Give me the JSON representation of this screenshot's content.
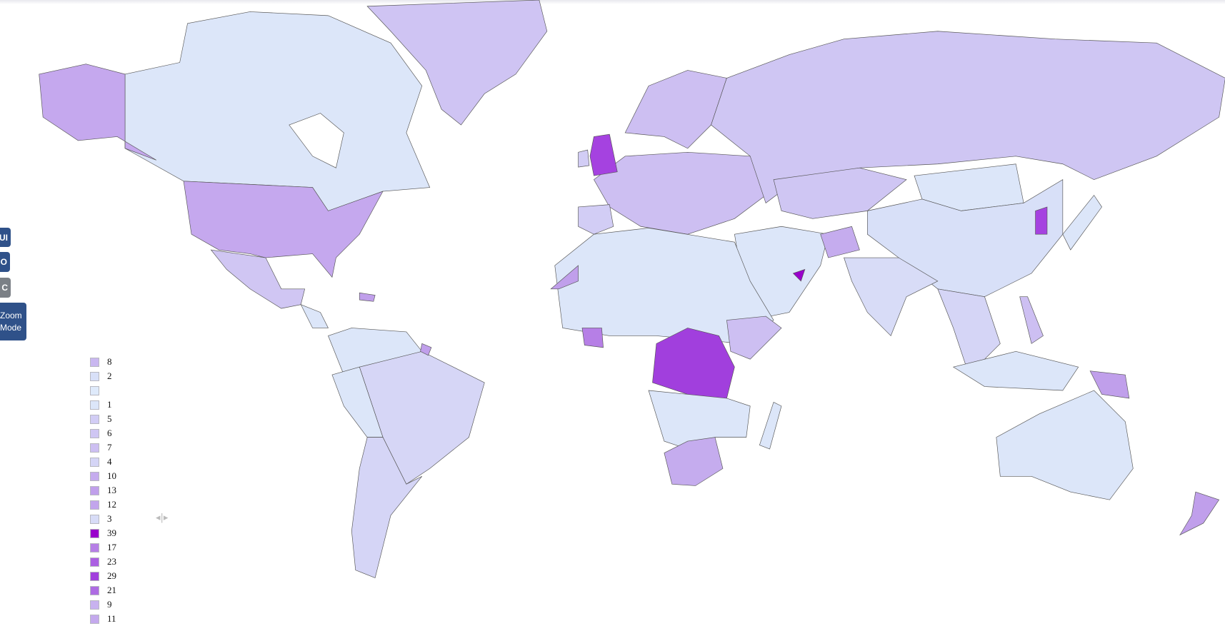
{
  "controls": {
    "buttons": [
      {
        "label": "UI"
      },
      {
        "label": "O"
      },
      {
        "label": "C"
      },
      {
        "label_line1": "Zoom",
        "label_line2": "Mode"
      }
    ]
  },
  "legend": {
    "items": [
      {
        "label": "8",
        "color": "#c9b7f0"
      },
      {
        "label": "2",
        "color": "#d8e0f8"
      },
      {
        "label": "",
        "color": "#dfeafb"
      },
      {
        "label": "1",
        "color": "#dce6f9"
      },
      {
        "label": "5",
        "color": "#d2cdf5"
      },
      {
        "label": "6",
        "color": "#cfc6f3"
      },
      {
        "label": "7",
        "color": "#cdbff2"
      },
      {
        "label": "4",
        "color": "#d5d5f6"
      },
      {
        "label": "10",
        "color": "#c5acee"
      },
      {
        "label": "13",
        "color": "#c09feb"
      },
      {
        "label": "12",
        "color": "#c2a5ec"
      },
      {
        "label": "3",
        "color": "#d8dcf7"
      },
      {
        "label": "39",
        "color": "#9900cc"
      },
      {
        "label": "17",
        "color": "#b67fe6"
      },
      {
        "label": "23",
        "color": "#ab5fe2"
      },
      {
        "label": "29",
        "color": "#a13fdd"
      },
      {
        "label": "21",
        "color": "#ae6ce3"
      },
      {
        "label": "9",
        "color": "#c8b2ef"
      },
      {
        "label": "11",
        "color": "#c4a9ed"
      }
    ]
  },
  "splitter_icon": "resize-horizontal-icon"
}
